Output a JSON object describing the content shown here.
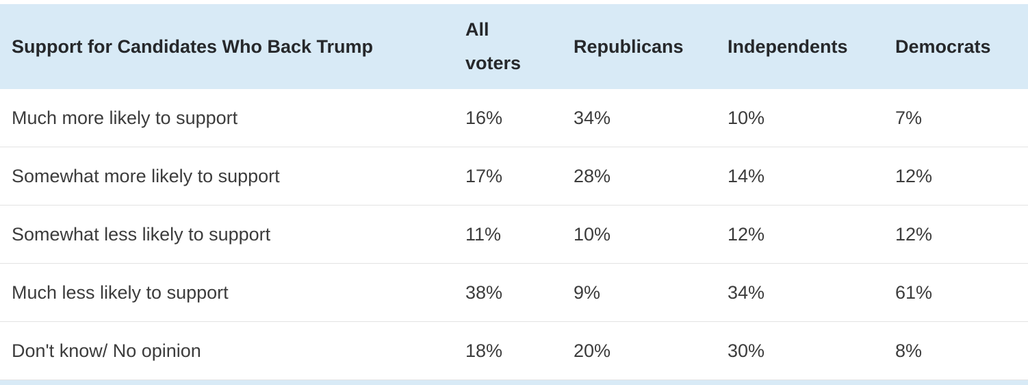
{
  "table": {
    "title": "Support for Candidates Who Back Trump",
    "columns": [
      "All voters",
      "Republicans",
      "Independents",
      "Democrats"
    ],
    "rows": [
      {
        "label": "Much more likely to support",
        "values": [
          "16%",
          "34%",
          "10%",
          "7%"
        ]
      },
      {
        "label": "Somewhat more likely to support",
        "values": [
          "17%",
          "28%",
          "14%",
          "12%"
        ]
      },
      {
        "label": "Somewhat less likely to support",
        "values": [
          "11%",
          "10%",
          "12%",
          "12%"
        ]
      },
      {
        "label": "Much less likely to support",
        "values": [
          "38%",
          "9%",
          "34%",
          "61%"
        ]
      },
      {
        "label": "Don't know/ No opinion",
        "values": [
          "18%",
          "20%",
          "30%",
          "8%"
        ]
      }
    ]
  },
  "chart_data": {
    "type": "table",
    "title": "Support for Candidates Who Back Trump",
    "categories": [
      "Much more likely to support",
      "Somewhat more likely to support",
      "Somewhat less likely to support",
      "Much less likely to support",
      "Don't know/ No opinion"
    ],
    "series": [
      {
        "name": "All voters",
        "values": [
          16,
          17,
          11,
          38,
          18
        ]
      },
      {
        "name": "Republicans",
        "values": [
          34,
          28,
          10,
          9,
          20
        ]
      },
      {
        "name": "Independents",
        "values": [
          10,
          14,
          12,
          34,
          30
        ]
      },
      {
        "name": "Democrats",
        "values": [
          7,
          12,
          12,
          61,
          8
        ]
      }
    ],
    "unit": "%"
  },
  "colors": {
    "header_bg": "#d8eaf6",
    "row_divider": "#e3e3e3",
    "header_text": "#26282b",
    "body_text": "#3c3c3c"
  }
}
